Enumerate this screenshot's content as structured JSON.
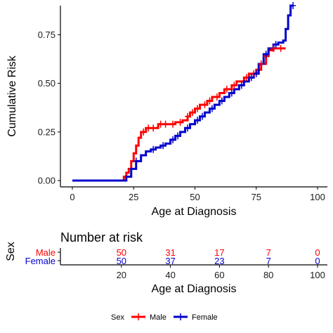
{
  "chart_data": [
    {
      "type": "line",
      "chart_kind": "step (cumulative incidence)",
      "xlabel": "Age at Diagnosis",
      "ylabel": "Cumulative Risk",
      "xlim": [
        0,
        100
      ],
      "ylim": [
        0,
        0.9
      ],
      "x_ticks": [
        0,
        25,
        50,
        75,
        100
      ],
      "y_ticks": [
        0.0,
        0.25,
        0.5,
        0.75
      ],
      "x_tick_labels": [
        "0",
        "25",
        "50",
        "75",
        "100"
      ],
      "y_tick_labels": [
        "0.00",
        "0.25",
        "0.50",
        "0.75"
      ],
      "grid": false,
      "series": [
        {
          "name": "Male",
          "color": "#ff0000",
          "points": [
            [
              0,
              0
            ],
            [
              20,
              0
            ],
            [
              21,
              0.02
            ],
            [
              22,
              0.04
            ],
            [
              23,
              0.06
            ],
            [
              24,
              0.1
            ],
            [
              25,
              0.14
            ],
            [
              26,
              0.18
            ],
            [
              27,
              0.22
            ],
            [
              28,
              0.25
            ],
            [
              30,
              0.27
            ],
            [
              35,
              0.29
            ],
            [
              40,
              0.29
            ],
            [
              42,
              0.3
            ],
            [
              45,
              0.31
            ],
            [
              47,
              0.33
            ],
            [
              48,
              0.35
            ],
            [
              50,
              0.37
            ],
            [
              52,
              0.39
            ],
            [
              55,
              0.41
            ],
            [
              57,
              0.43
            ],
            [
              60,
              0.45
            ],
            [
              62,
              0.47
            ],
            [
              65,
              0.49
            ],
            [
              67,
              0.51
            ],
            [
              70,
              0.53
            ],
            [
              72,
              0.55
            ],
            [
              75,
              0.57
            ],
            [
              77,
              0.6
            ],
            [
              79,
              0.64
            ],
            [
              80,
              0.67
            ],
            [
              82,
              0.68
            ],
            [
              85,
              0.68
            ],
            [
              87,
              0.68
            ]
          ],
          "censor_x": [
            29,
            31,
            33,
            36,
            38,
            41,
            44,
            47,
            49,
            51,
            54,
            56,
            59,
            63,
            66,
            71,
            74,
            77,
            79,
            82,
            85
          ]
        },
        {
          "name": "Female",
          "color": "#0000cc",
          "points": [
            [
              0,
              0
            ],
            [
              20,
              0
            ],
            [
              22,
              0.02
            ],
            [
              24,
              0.06
            ],
            [
              26,
              0.1
            ],
            [
              28,
              0.13
            ],
            [
              30,
              0.15
            ],
            [
              32,
              0.16
            ],
            [
              34,
              0.17
            ],
            [
              36,
              0.18
            ],
            [
              38,
              0.19
            ],
            [
              40,
              0.21
            ],
            [
              42,
              0.23
            ],
            [
              44,
              0.25
            ],
            [
              46,
              0.27
            ],
            [
              48,
              0.29
            ],
            [
              50,
              0.31
            ],
            [
              52,
              0.33
            ],
            [
              54,
              0.35
            ],
            [
              56,
              0.37
            ],
            [
              58,
              0.39
            ],
            [
              60,
              0.41
            ],
            [
              62,
              0.43
            ],
            [
              64,
              0.45
            ],
            [
              66,
              0.47
            ],
            [
              68,
              0.49
            ],
            [
              70,
              0.51
            ],
            [
              72,
              0.53
            ],
            [
              74,
              0.55
            ],
            [
              76,
              0.6
            ],
            [
              78,
              0.65
            ],
            [
              80,
              0.68
            ],
            [
              82,
              0.7
            ],
            [
              84,
              0.71
            ],
            [
              86,
              0.72
            ],
            [
              87,
              0.78
            ],
            [
              88,
              0.85
            ],
            [
              89,
              0.9
            ],
            [
              90,
              0.9
            ]
          ],
          "censor_x": [
            26,
            33,
            37,
            41,
            43,
            47,
            51,
            53,
            57,
            61,
            65,
            69,
            73,
            75,
            79,
            83,
            90
          ]
        }
      ]
    },
    {
      "type": "table",
      "title": "Number at risk",
      "ylabel": "Sex",
      "xlabel": "Age at Diagnosis",
      "xlim": [
        0,
        100
      ],
      "x_ticks": [
        20,
        40,
        60,
        80,
        100
      ],
      "x_tick_labels": [
        "20",
        "40",
        "60",
        "80",
        "100"
      ],
      "rows": [
        {
          "name": "Male",
          "color": "#ff0000",
          "values": [
            "50",
            "31",
            "17",
            "7",
            "0"
          ]
        },
        {
          "name": "Female",
          "color": "#0000cc",
          "values": [
            "50",
            "37",
            "23",
            "7",
            "0"
          ]
        }
      ]
    }
  ],
  "legend": {
    "title": "Sex",
    "position": "bottom",
    "items": [
      {
        "label": "Male",
        "color": "#ff0000"
      },
      {
        "label": "Female",
        "color": "#0000cc"
      }
    ]
  }
}
